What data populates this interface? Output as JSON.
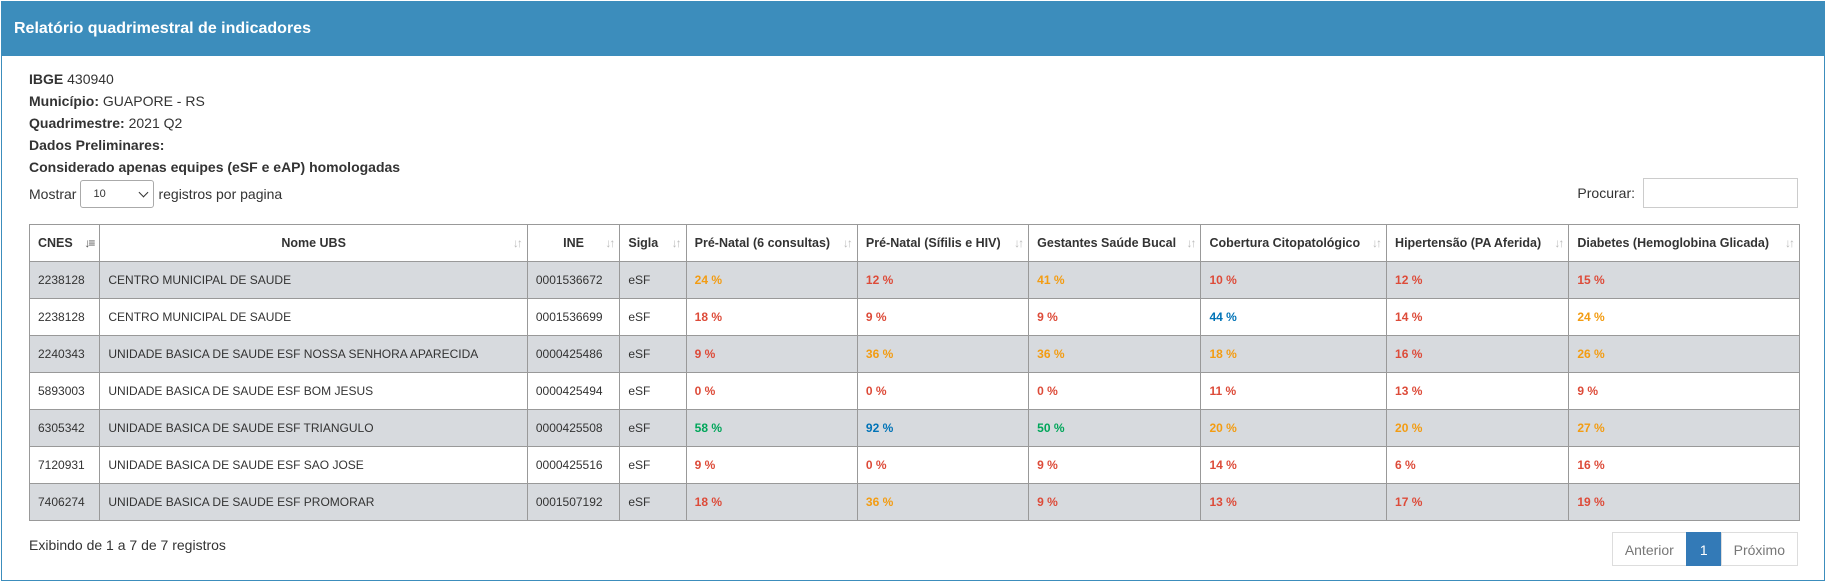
{
  "panel": {
    "title": "Relatório quadrimestral de indicadores"
  },
  "info": {
    "ibge_label": "IBGE",
    "ibge_value": "430940",
    "municipio_label": "Município:",
    "municipio_value": "GUAPORE - RS",
    "quadrimestre_label": "Quadrimestre:",
    "quadrimestre_value": "2021 Q2",
    "preliminares_label": "Dados Preliminares:",
    "considerado_label": "Considerado apenas equipes (eSF e eAP) homologadas"
  },
  "length": {
    "prefix": "Mostrar",
    "value": "10",
    "suffix": "registros por pagina"
  },
  "search": {
    "label": "Procurar:",
    "value": ""
  },
  "table": {
    "headers": [
      "CNES",
      "Nome UBS",
      "INE",
      "Sigla",
      "Pré-Natal (6 consultas)",
      "Pré-Natal (Sífilis e HIV)",
      "Gestantes Saúde Bucal",
      "Cobertura Citopatológico",
      "Hipertensão (PA Aferida)",
      "Diabetes (Hemoglobina Glicada)"
    ],
    "rows": [
      [
        "2238128",
        "CENTRO MUNICIPAL DE SAUDE",
        "0001536672",
        "eSF",
        "24 %",
        "12 %",
        "41 %",
        "10 %",
        "12 %",
        "15 %"
      ],
      [
        "2238128",
        "CENTRO MUNICIPAL DE SAUDE",
        "0001536699",
        "eSF",
        "18 %",
        "9 %",
        "9 %",
        "44 %",
        "14 %",
        "24 %"
      ],
      [
        "2240343",
        "UNIDADE BASICA DE SAUDE ESF NOSSA SENHORA APARECIDA",
        "0000425486",
        "eSF",
        "9 %",
        "36 %",
        "36 %",
        "18 %",
        "16 %",
        "26 %"
      ],
      [
        "5893003",
        "UNIDADE BASICA DE SAUDE ESF BOM JESUS",
        "0000425494",
        "eSF",
        "0 %",
        "0 %",
        "0 %",
        "11 %",
        "13 %",
        "9 %"
      ],
      [
        "6305342",
        "UNIDADE BASICA DE SAUDE ESF TRIANGULO",
        "0000425508",
        "eSF",
        "58 %",
        "92 %",
        "50 %",
        "20 %",
        "20 %",
        "27 %"
      ],
      [
        "7120931",
        "UNIDADE BASICA DE SAUDE ESF SAO JOSE",
        "0000425516",
        "eSF",
        "9 %",
        "0 %",
        "9 %",
        "14 %",
        "6 %",
        "16 %"
      ],
      [
        "7406274",
        "UNIDADE BASICA DE SAUDE ESF PROMORAR",
        "0001507192",
        "eSF",
        "18 %",
        "36 %",
        "9 %",
        "13 %",
        "17 %",
        "19 %"
      ]
    ],
    "colors": [
      [
        "orange",
        "red",
        "orange",
        "red",
        "red",
        "red"
      ],
      [
        "red",
        "red",
        "red",
        "blue",
        "red",
        "orange"
      ],
      [
        "red",
        "orange",
        "orange",
        "orange",
        "red",
        "orange"
      ],
      [
        "red",
        "red",
        "red",
        "red",
        "red",
        "red"
      ],
      [
        "green",
        "blue",
        "green",
        "orange",
        "orange",
        "orange"
      ],
      [
        "red",
        "red",
        "red",
        "red",
        "red",
        "red"
      ],
      [
        "red",
        "orange",
        "red",
        "red",
        "red",
        "red"
      ]
    ],
    "color_hex": {
      "red": "#dd4b39",
      "orange": "#f39c12",
      "green": "#00a65a",
      "blue": "#0073b7"
    }
  },
  "footer": {
    "summary": "Exibindo de 1 a 7 de 7 registros",
    "prev": "Anterior",
    "page": "1",
    "next": "Próximo"
  }
}
